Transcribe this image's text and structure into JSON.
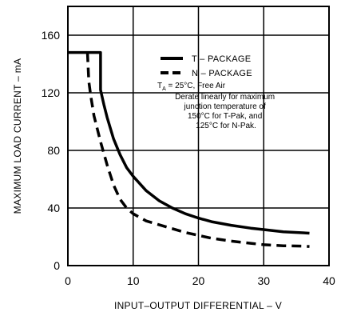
{
  "chart_data": {
    "type": "line",
    "xlabel": "INPUT–OUTPUT DIFFERENTIAL – V",
    "ylabel": "MAXIMUM LOAD CURRENT – mA",
    "xlim": [
      0,
      40
    ],
    "ylim": [
      0,
      180
    ],
    "xticks": [
      0,
      10,
      20,
      30,
      40
    ],
    "yticks": [
      0,
      40,
      80,
      120,
      160
    ],
    "grid": true,
    "legend_position": "top-right",
    "series": [
      {
        "name": "T – PACKAGE",
        "style": "solid",
        "points": [
          [
            0,
            148
          ],
          [
            5,
            148
          ],
          [
            5,
            122
          ],
          [
            5.5,
            112
          ],
          [
            6,
            103
          ],
          [
            7,
            88
          ],
          [
            8,
            77
          ],
          [
            9,
            68
          ],
          [
            10,
            62
          ],
          [
            12,
            52
          ],
          [
            14,
            45
          ],
          [
            16,
            40
          ],
          [
            18,
            36
          ],
          [
            20,
            33
          ],
          [
            22,
            30.5
          ],
          [
            25,
            28
          ],
          [
            28,
            26
          ],
          [
            30,
            25
          ],
          [
            33,
            23.5
          ],
          [
            36,
            22.8
          ],
          [
            37,
            22.5
          ]
        ]
      },
      {
        "name": "N – PACKAGE",
        "style": "dashed",
        "points": [
          [
            3,
            148
          ],
          [
            3.2,
            128
          ],
          [
            3.5,
            118
          ],
          [
            4,
            104
          ],
          [
            5,
            86
          ],
          [
            6,
            70
          ],
          [
            7,
            56
          ],
          [
            8,
            46
          ],
          [
            9,
            40
          ],
          [
            10,
            36
          ],
          [
            12,
            31
          ],
          [
            15,
            27
          ],
          [
            18,
            23
          ],
          [
            20,
            21
          ],
          [
            22,
            19
          ],
          [
            25,
            17
          ],
          [
            28,
            15.5
          ],
          [
            30,
            14.5
          ],
          [
            33,
            13.8
          ],
          [
            36,
            13.5
          ],
          [
            37,
            13.3
          ]
        ]
      }
    ],
    "annotation": {
      "condition_prefix": "T",
      "condition_subscript": "A",
      "condition_rest": " = 25°C, Free Air",
      "derate_lines": [
        "Derate linearly for maximum",
        "junction temperature of",
        "150°C for T-Pak, and",
        "125°C for N-Pak."
      ]
    },
    "colors": {
      "line": "#000000",
      "frame": "#000000",
      "grid": "#000000",
      "background": "#ffffff"
    }
  }
}
